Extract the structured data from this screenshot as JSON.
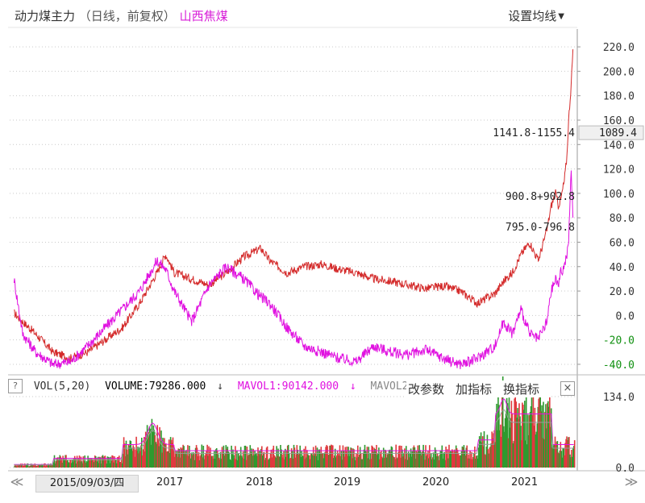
{
  "header": {
    "title": "动力煤主力",
    "subtitle": "（日线，前复权）",
    "compare": "山西焦煤",
    "ma_settings": "设置均线"
  },
  "price_panel": {
    "annotations": [
      {
        "text": "1141.8-1155.4",
        "value": 150
      },
      {
        "text": "900.8+902.8",
        "value": 98
      },
      {
        "text": "795.0-796.8",
        "value": 73
      }
    ],
    "current_price": "1089.4",
    "current_price_value": 150
  },
  "volume_panel": {
    "help": "?",
    "name": "VOL(5,20)",
    "volume_label": "VOLUME:79286.000",
    "arrow1": "↓",
    "mavol1": "MAVOL1:90142.000",
    "arrow2": "↓",
    "mavol2": "MAVOL2:9",
    "buttons": {
      "params": "改参数",
      "add": "加指标",
      "switch": "换指标"
    },
    "close": "×"
  },
  "time_axis": {
    "date": "2015/09/03/四",
    "years": [
      "2017",
      "2018",
      "2019",
      "2020",
      "2021"
    ],
    "scroll_left": "≪",
    "scroll_right": "≫"
  },
  "colors": {
    "main_series": "#d42b2b",
    "compare_series": "#e011e0",
    "volume_up": "#e0393e",
    "volume_down": "#2f9a2f",
    "mavol1": "#e011e0",
    "mavol2": "#999999",
    "axis_text": "#333333",
    "negative_ticks": "#109010"
  },
  "chart_data": [
    {
      "type": "line",
      "y_ticks": [
        "220.0",
        "200.0",
        "180.0",
        "160.0",
        "140.0",
        "120.0",
        "100.0",
        "80.0",
        "60.0",
        "40.0",
        "20.0",
        "0.0",
        "-20.0",
        "-40.0"
      ],
      "y_tick_values": [
        220,
        200,
        180,
        160,
        140,
        120,
        100,
        80,
        60,
        40,
        20,
        0,
        -20,
        -40
      ],
      "ylim": [
        -44,
        228
      ],
      "x": [
        2015.25,
        2015.35,
        2015.5,
        2015.7,
        2015.9,
        2016.1,
        2016.3,
        2016.5,
        2016.7,
        2016.9,
        2017.0,
        2017.1,
        2017.3,
        2017.5,
        2017.7,
        2017.9,
        2018.1,
        2018.2,
        2018.4,
        2018.6,
        2018.8,
        2019.0,
        2019.2,
        2019.4,
        2019.6,
        2019.8,
        2020.0,
        2020.2,
        2020.4,
        2020.5,
        2020.6,
        2020.8,
        2020.9,
        2021.0,
        2021.1,
        2021.2,
        2021.3,
        2021.4,
        2021.45,
        2021.5,
        2021.53,
        2021.56,
        2021.6,
        2021.63,
        2021.65,
        2021.68,
        2021.7
      ],
      "series": [
        {
          "values": [
            2,
            -5,
            -15,
            -30,
            -35,
            -30,
            -20,
            -10,
            10,
            35,
            50,
            35,
            30,
            25,
            35,
            48,
            55,
            45,
            35,
            40,
            42,
            38,
            35,
            30,
            28,
            25,
            22,
            24,
            20,
            15,
            10,
            18,
            28,
            35,
            50,
            60,
            45,
            70,
            90,
            100,
            90,
            95,
            110,
            130,
            160,
            190,
            218
          ]
        },
        {
          "values": [
            30,
            -15,
            -30,
            -40,
            -38,
            -25,
            -10,
            5,
            20,
            45,
            38,
            20,
            -5,
            25,
            40,
            30,
            15,
            10,
            -10,
            -25,
            -30,
            -35,
            -38,
            -25,
            -30,
            -32,
            -28,
            -35,
            -40,
            -38,
            -35,
            -25,
            -5,
            -15,
            5,
            -15,
            -20,
            -5,
            20,
            30,
            25,
            35,
            40,
            50,
            60,
            120,
            80
          ]
        }
      ]
    },
    {
      "type": "bar",
      "y_ticks": [
        "134.0",
        "0.0"
      ],
      "y_tick_values": [
        134,
        0
      ],
      "ylim": [
        0,
        134
      ]
    }
  ]
}
